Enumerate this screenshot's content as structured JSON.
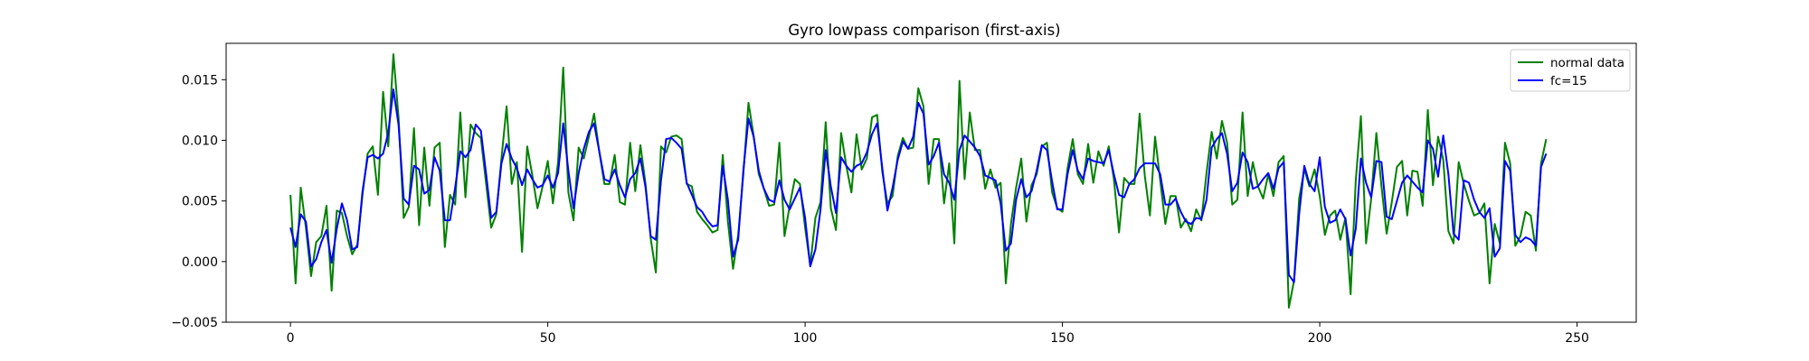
{
  "chart_data": {
    "type": "line",
    "title": "Gyro lowpass comparison (first-axis)",
    "xlabel": "",
    "ylabel": "",
    "xlim": [
      -12.5,
      261.5
    ],
    "ylim": [
      -0.005,
      0.018
    ],
    "xticks": [
      0,
      50,
      100,
      150,
      200,
      250
    ],
    "xtick_labels": [
      "0",
      "50",
      "100",
      "150",
      "200",
      "250"
    ],
    "yticks": [
      -0.005,
      0.0,
      0.005,
      0.01,
      0.015
    ],
    "ytick_labels": [
      "−0.005",
      "0.000",
      "0.005",
      "0.010",
      "0.015"
    ],
    "grid": false,
    "legend_position": "top-right",
    "series": [
      {
        "name": "normal data",
        "color": "#008000",
        "x_start": 0,
        "x_step": 1,
        "values": [
          0.0055,
          -0.0018,
          0.0061,
          0.0028,
          -0.0012,
          0.0016,
          0.0021,
          0.0046,
          -0.0024,
          0.0042,
          0.004,
          0.0021,
          0.0006,
          0.0014,
          0.0055,
          0.0089,
          0.0095,
          0.0055,
          0.014,
          0.0095,
          0.0171,
          0.0119,
          0.0036,
          0.0045,
          0.011,
          0.003,
          0.0094,
          0.0046,
          0.0094,
          0.0098,
          0.0012,
          0.0055,
          0.0047,
          0.0123,
          0.0053,
          0.0113,
          0.0106,
          0.0102,
          0.0065,
          0.0028,
          0.0039,
          0.0085,
          0.0128,
          0.0064,
          0.0082,
          0.0008,
          0.0095,
          0.0071,
          0.0044,
          0.0062,
          0.0083,
          0.0048,
          0.0082,
          0.016,
          0.0057,
          0.0034,
          0.0094,
          0.0085,
          0.0103,
          0.0122,
          0.0091,
          0.0064,
          0.0064,
          0.0088,
          0.0049,
          0.0047,
          0.0098,
          0.0058,
          0.0096,
          0.0064,
          0.0019,
          -0.0009,
          0.0095,
          0.009,
          0.0103,
          0.0104,
          0.0101,
          0.0064,
          0.0062,
          0.0041,
          0.0035,
          0.003,
          0.0024,
          0.0026,
          0.0088,
          0.0033,
          -0.0006,
          0.0022,
          0.0072,
          0.0131,
          0.0104,
          0.0072,
          0.006,
          0.0046,
          0.0047,
          0.0098,
          0.0021,
          0.0046,
          0.0068,
          0.0064,
          0.0028,
          -0.0003,
          0.0036,
          0.0049,
          0.0115,
          0.0044,
          0.0026,
          0.0106,
          0.0079,
          0.0057,
          0.0105,
          0.0076,
          0.0085,
          0.0119,
          0.0121,
          0.0074,
          0.0048,
          0.0054,
          0.0087,
          0.0102,
          0.0093,
          0.0094,
          0.0143,
          0.0128,
          0.0064,
          0.0101,
          0.0101,
          0.0048,
          0.0081,
          0.0015,
          0.0149,
          0.0068,
          0.0123,
          0.0092,
          0.0092,
          0.006,
          0.0076,
          0.0061,
          0.0065,
          -0.0018,
          0.0031,
          0.0061,
          0.0085,
          0.0033,
          0.0063,
          0.0072,
          0.0095,
          0.0098,
          0.0057,
          0.0044,
          0.0041,
          0.0077,
          0.0101,
          0.0072,
          0.0064,
          0.0097,
          0.0065,
          0.0091,
          0.0079,
          0.0095,
          0.0068,
          0.0024,
          0.0069,
          0.0064,
          0.0064,
          0.0122,
          0.0071,
          0.0038,
          0.0103,
          0.0067,
          0.0031,
          0.0054,
          0.0054,
          0.0028,
          0.0035,
          0.0025,
          0.0043,
          0.0034,
          0.0073,
          0.0107,
          0.0085,
          0.0116,
          0.0098,
          0.0047,
          0.0051,
          0.0123,
          0.0054,
          0.0082,
          0.0062,
          0.0052,
          0.0072,
          0.0054,
          0.0082,
          0.0087,
          -0.0038,
          -0.0016,
          0.0052,
          0.0076,
          0.0062,
          0.0076,
          0.0054,
          0.0022,
          0.0038,
          0.0042,
          0.0018,
          0.0036,
          -0.0027,
          0.0067,
          0.012,
          0.0015,
          0.0052,
          0.0106,
          0.0062,
          0.0023,
          0.0049,
          0.0078,
          0.0083,
          0.0038,
          0.0075,
          0.0074,
          0.0046,
          0.0125,
          0.0063,
          0.0103,
          0.0084,
          0.0025,
          0.0015,
          0.0082,
          0.0064,
          0.005,
          0.0038,
          0.004,
          0.0048,
          -0.0018,
          0.0031,
          0.0015,
          0.0098,
          0.0081,
          0.0013,
          0.0021,
          0.0041,
          0.0038,
          0.0009,
          0.0081,
          0.0101
        ]
      },
      {
        "name": "fc=15",
        "color": "#0000ff",
        "x_start": 0,
        "x_step": 1,
        "values": [
          0.0028,
          0.0012,
          0.0039,
          0.0033,
          -0.0004,
          0.0002,
          0.0016,
          0.0026,
          -0.0001,
          0.0027,
          0.0048,
          0.0034,
          0.001,
          0.0012,
          0.0058,
          0.0086,
          0.0088,
          0.0085,
          0.0089,
          0.0106,
          0.0142,
          0.0113,
          0.0052,
          0.0047,
          0.0079,
          0.0076,
          0.0056,
          0.0059,
          0.0086,
          0.0075,
          0.0034,
          0.0034,
          0.0061,
          0.0091,
          0.0086,
          0.0092,
          0.0113,
          0.0108,
          0.0073,
          0.0036,
          0.0041,
          0.0081,
          0.0097,
          0.0085,
          0.0077,
          0.0063,
          0.0076,
          0.0068,
          0.0061,
          0.0063,
          0.0071,
          0.0061,
          0.0073,
          0.0114,
          0.0075,
          0.0044,
          0.0073,
          0.0093,
          0.0107,
          0.0114,
          0.0091,
          0.0068,
          0.0066,
          0.0076,
          0.0063,
          0.0053,
          0.0068,
          0.0073,
          0.0085,
          0.0061,
          0.0021,
          0.0018,
          0.0067,
          0.0101,
          0.0102,
          0.0098,
          0.0093,
          0.0065,
          0.0055,
          0.0045,
          0.0041,
          0.0034,
          0.0029,
          0.003,
          0.0079,
          0.0051,
          0.0004,
          0.0018,
          0.0075,
          0.0118,
          0.0103,
          0.0075,
          0.006,
          0.0051,
          0.0049,
          0.0067,
          0.0051,
          0.0043,
          0.0052,
          0.0061,
          0.0036,
          -0.0004,
          0.001,
          0.0043,
          0.0092,
          0.0062,
          0.004,
          0.0086,
          0.0079,
          0.0074,
          0.0079,
          0.0081,
          0.009,
          0.0105,
          0.0114,
          0.0077,
          0.0042,
          0.0061,
          0.0084,
          0.0099,
          0.0093,
          0.0103,
          0.0131,
          0.0122,
          0.008,
          0.0087,
          0.0098,
          0.0072,
          0.0065,
          0.0051,
          0.0092,
          0.0104,
          0.0099,
          0.0094,
          0.0087,
          0.0071,
          0.0069,
          0.0067,
          0.0048,
          0.0009,
          0.0015,
          0.0051,
          0.0068,
          0.0053,
          0.0058,
          0.0075,
          0.0096,
          0.0092,
          0.0066,
          0.0043,
          0.0043,
          0.0072,
          0.0092,
          0.0075,
          0.0068,
          0.0085,
          0.0083,
          0.0082,
          0.0081,
          0.0092,
          0.0072,
          0.0055,
          0.0053,
          0.0064,
          0.0068,
          0.0077,
          0.0081,
          0.0081,
          0.0081,
          0.0072,
          0.0047,
          0.0047,
          0.0052,
          0.0041,
          0.0033,
          0.0031,
          0.0036,
          0.0035,
          0.0051,
          0.0094,
          0.0101,
          0.0106,
          0.0089,
          0.0058,
          0.0065,
          0.009,
          0.0082,
          0.006,
          0.0062,
          0.0068,
          0.0073,
          0.006,
          0.0077,
          0.0082,
          -0.0011,
          -0.0017,
          0.0039,
          0.0079,
          0.0064,
          0.0058,
          0.0086,
          0.0045,
          0.0032,
          0.0034,
          0.0043,
          0.0035,
          0.0005,
          0.0027,
          0.0085,
          0.0065,
          0.0053,
          0.0083,
          0.0082,
          0.0037,
          0.0035,
          0.005,
          0.0065,
          0.0071,
          0.0066,
          0.0061,
          0.0057,
          0.01,
          0.0093,
          0.007,
          0.0104,
          0.0072,
          0.0023,
          0.0018,
          0.0067,
          0.0065,
          0.0051,
          0.0041,
          0.0036,
          0.0044,
          0.0004,
          0.0011,
          0.0083,
          0.0075,
          0.0022,
          0.0016,
          0.002,
          0.0018,
          0.0013,
          0.0078,
          0.0089
        ]
      }
    ]
  }
}
